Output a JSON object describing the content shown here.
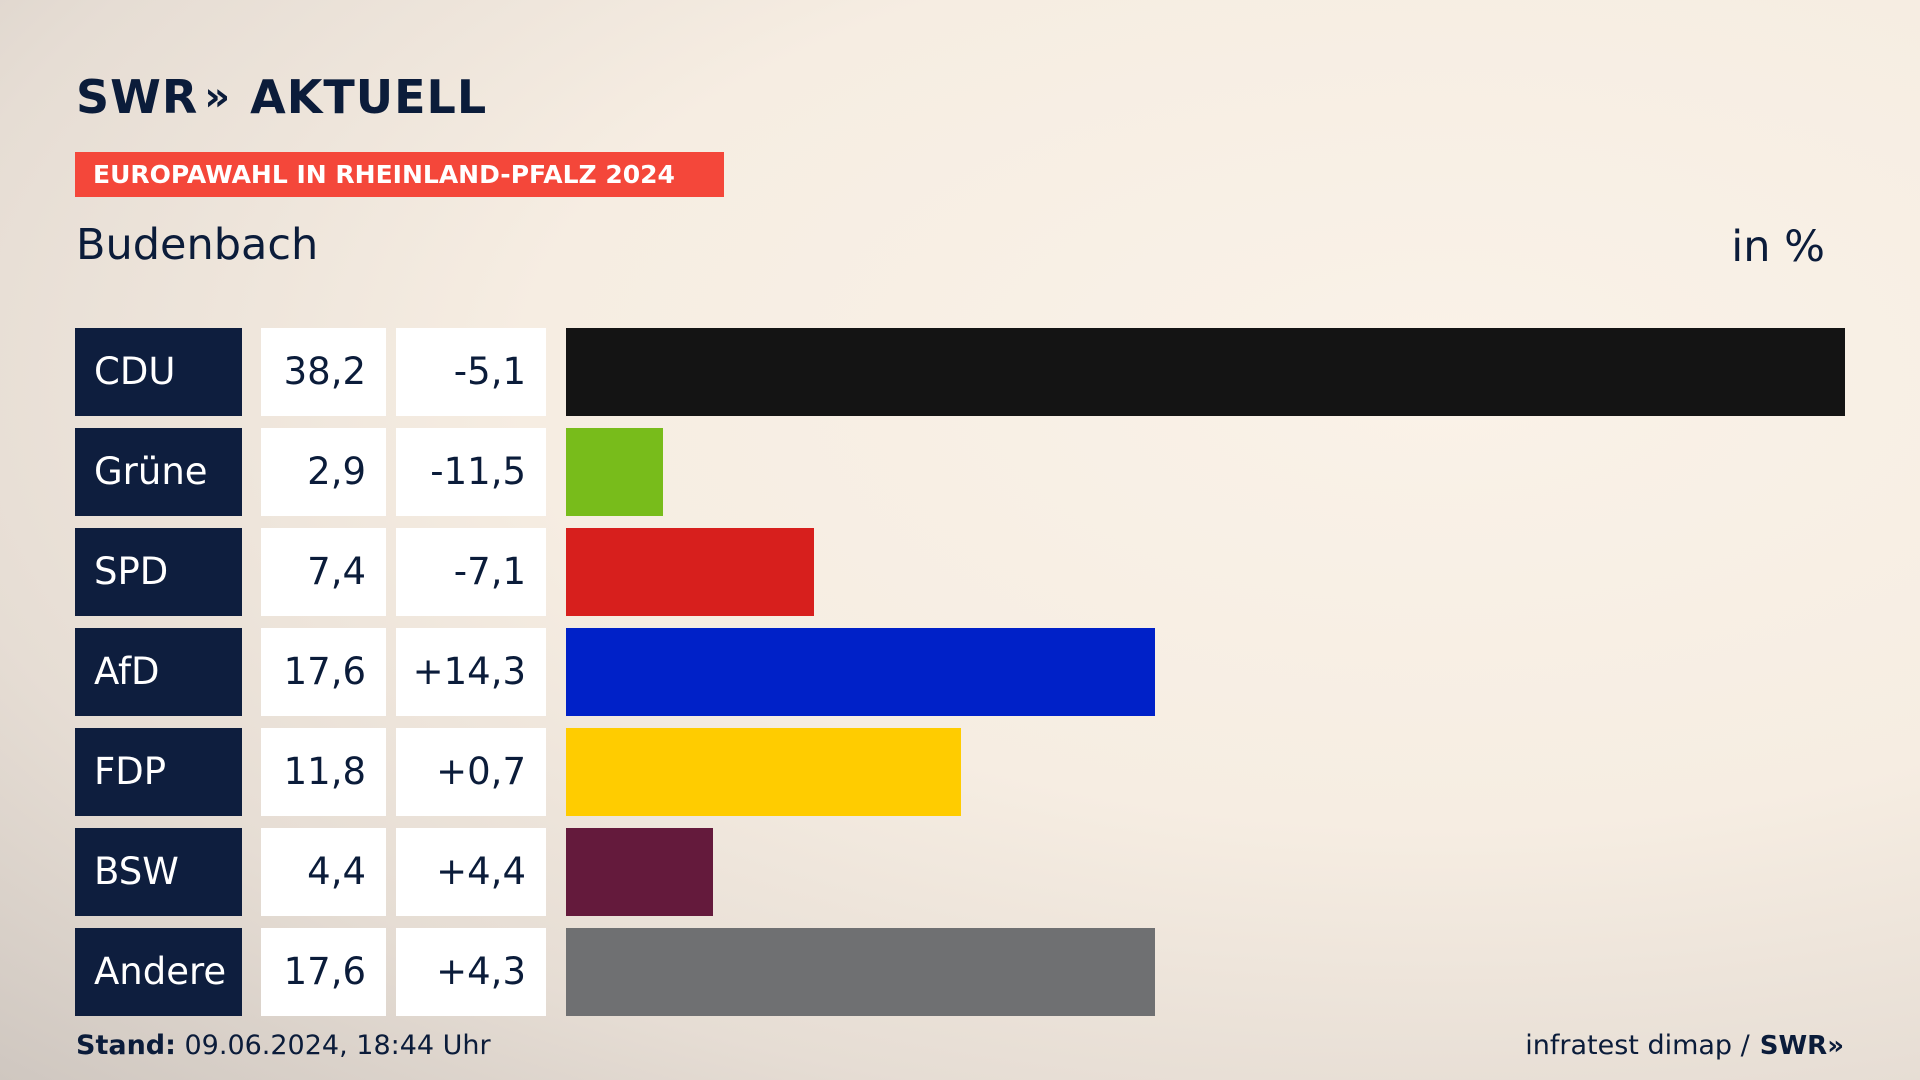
{
  "header": {
    "logo_swr": "SWR",
    "logo_chevrons": "»",
    "logo_aktuell": "AKTUELL",
    "subtitle": "EUROPAWAHL IN RHEINLAND-PFALZ 2024",
    "place": "Budenbach",
    "unit": "in %"
  },
  "footer": {
    "stand_label": "Stand:",
    "stand_value": " 09.06.2024, 18:44 Uhr",
    "source": "infratest dimap /",
    "source_logo": "SWR»"
  },
  "chart_data": {
    "type": "bar",
    "categories": [
      "CDU",
      "Grüne",
      "SPD",
      "AfD",
      "FDP",
      "BSW",
      "Andere"
    ],
    "values": [
      38.2,
      2.9,
      7.4,
      17.6,
      11.8,
      4.4,
      17.6
    ],
    "value_labels": [
      "38,2",
      "2,9",
      "7,4",
      "17,6",
      "11,8",
      "4,4",
      "17,6"
    ],
    "diff_labels": [
      "-5,1",
      "-11,5",
      "-7,1",
      "+14,3",
      "+0,7",
      "+4,4",
      "+4,3"
    ],
    "colors": [
      "#141414",
      "#78bc1b",
      "#d71f1d",
      "#0021c8",
      "#ffcc00",
      "#641a3c",
      "#6f7072"
    ],
    "title": "EUROPAWAHL IN RHEINLAND-PFALZ 2024",
    "unit": "in %",
    "xlim": [
      0,
      38.2
    ]
  }
}
